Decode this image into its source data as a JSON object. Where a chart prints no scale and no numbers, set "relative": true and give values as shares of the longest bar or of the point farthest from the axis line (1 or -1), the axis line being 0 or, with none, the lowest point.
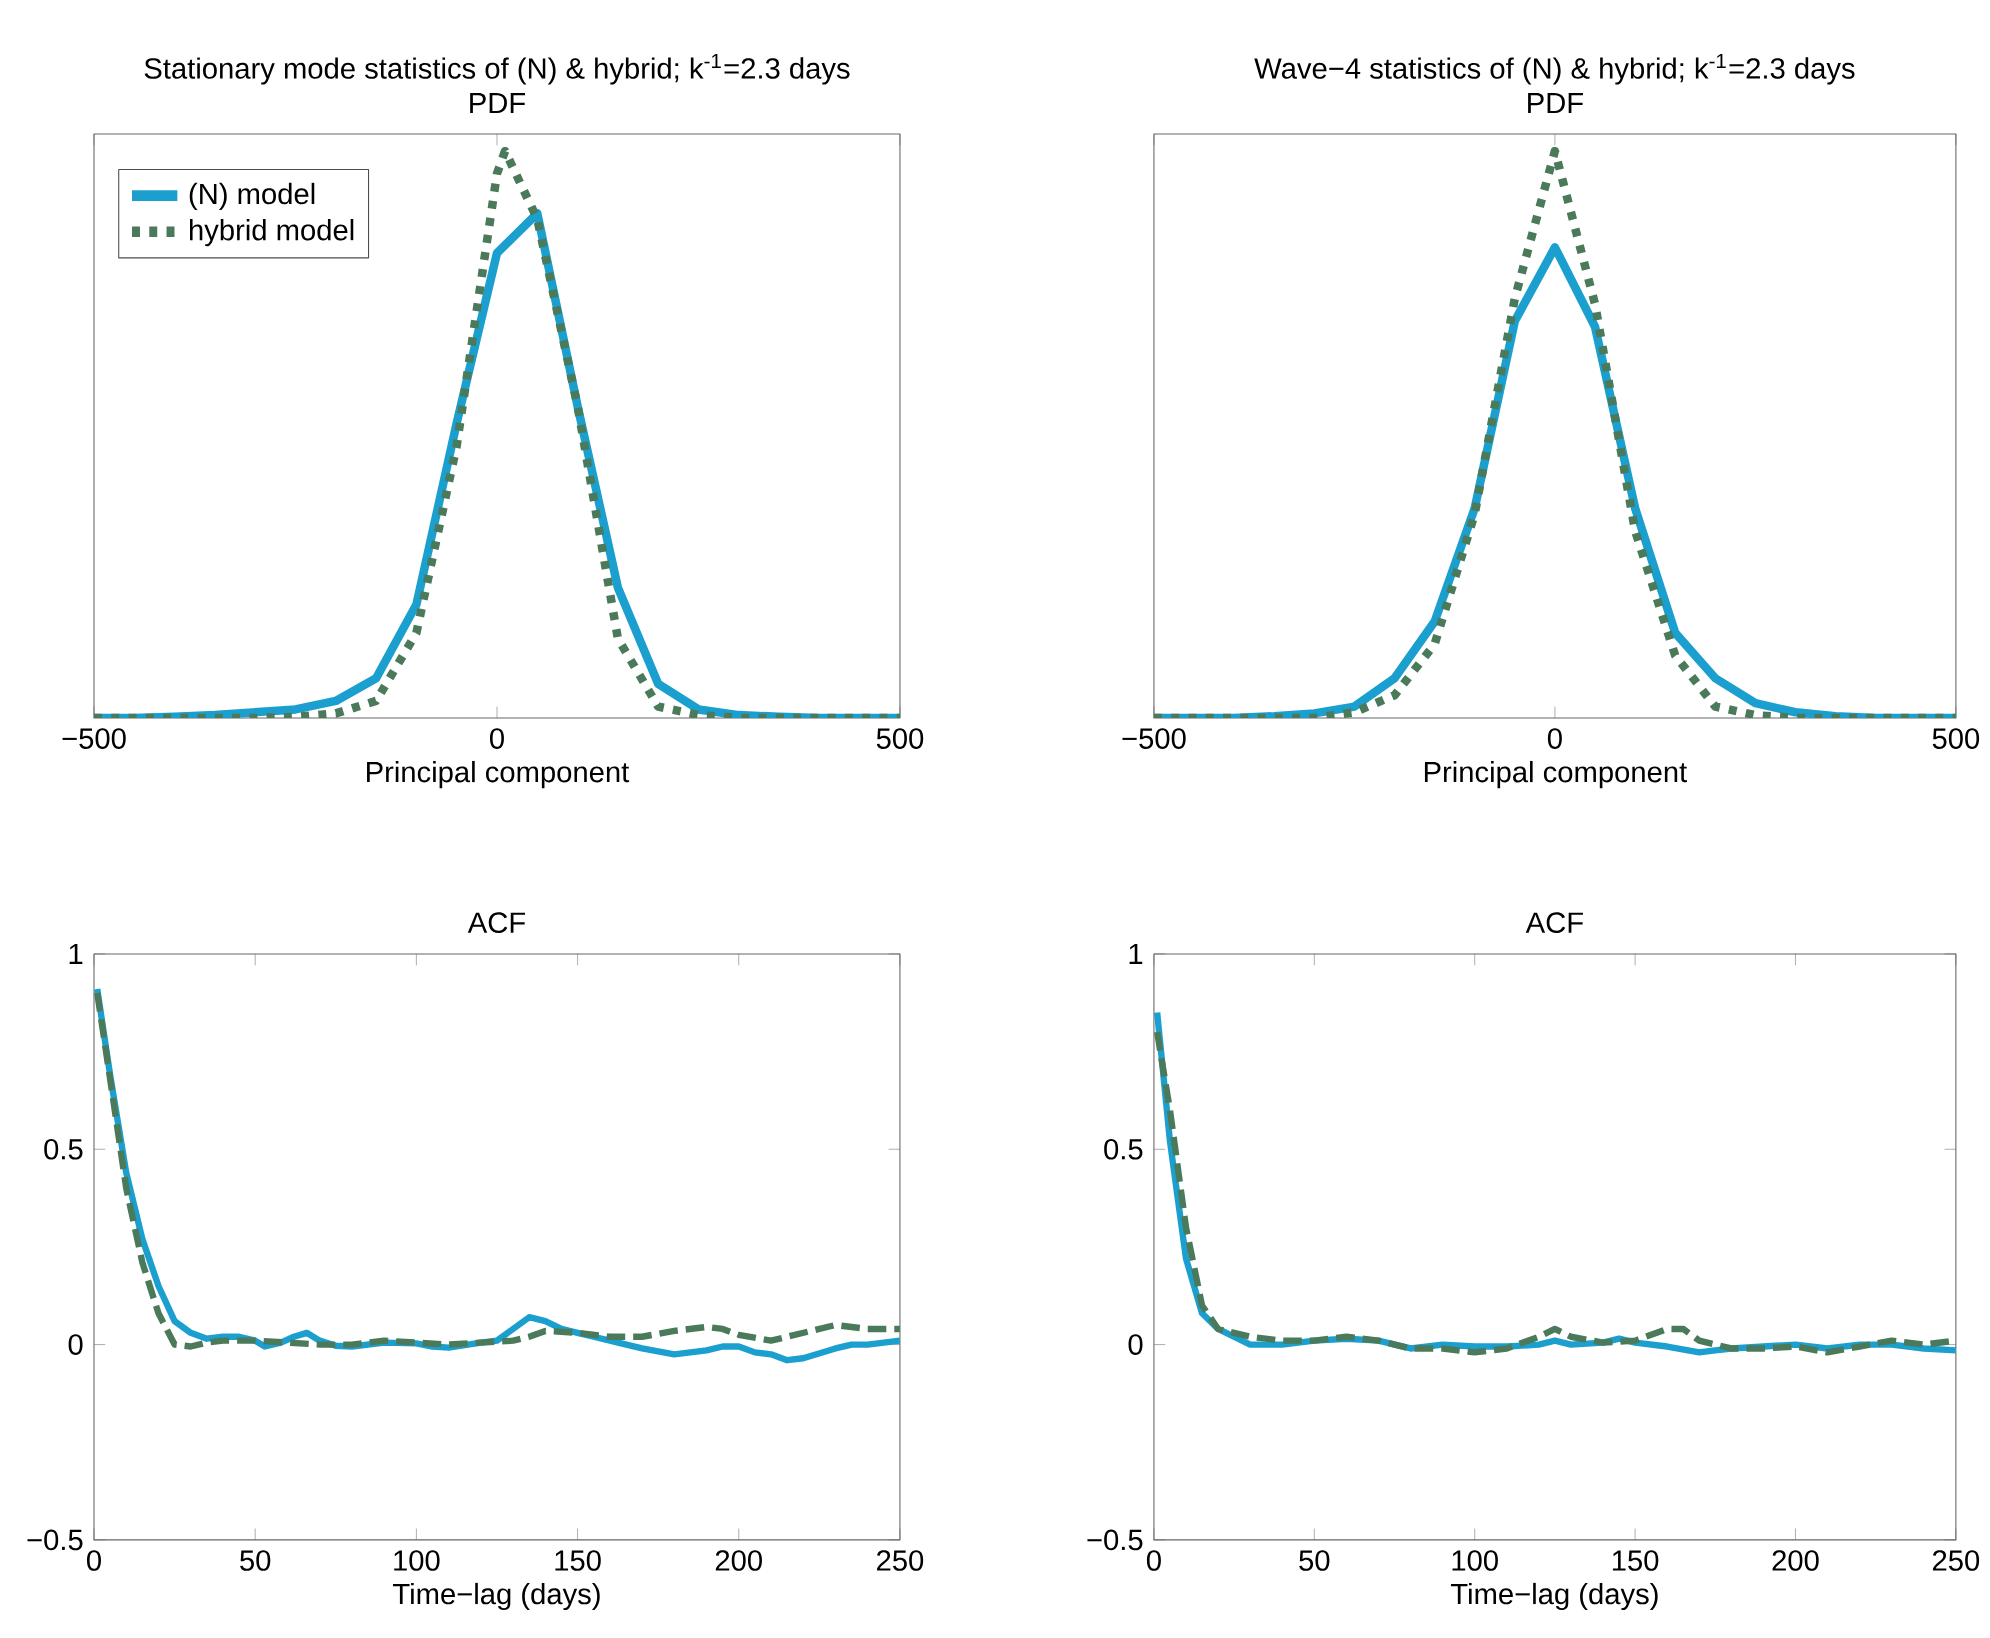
{
  "chart_data": [
    {
      "type": "line",
      "title": "Stationary mode statistics of (N) & hybrid; k$^{-1}$=2.3 days",
      "subtitle": "PDF",
      "xlabel": "Principal component",
      "relative": true,
      "xlim": [
        -500,
        500
      ],
      "xticks": [
        {
          "value": -500,
          "label": "−500"
        },
        0,
        500
      ],
      "legend": "top left",
      "grid": false,
      "series": [
        {
          "name": "(N) model",
          "color": "#1b9fcf",
          "line_style": "solid",
          "x": [
            -500,
            -450,
            -400,
            -350,
            -300,
            -250,
            -200,
            -150,
            -100,
            -50,
            0,
            50,
            100,
            150,
            200,
            250,
            300,
            350,
            400,
            450,
            500
          ],
          "values": [
            0,
            0,
            0.002,
            0.005,
            0.01,
            0.015,
            0.03,
            0.07,
            0.2,
            0.52,
            0.82,
            0.89,
            0.55,
            0.23,
            0.06,
            0.015,
            0.005,
            0.002,
            0,
            0,
            0
          ]
        },
        {
          "name": "hybrid model",
          "color": "#4a7a5a",
          "line_style": "dotted",
          "x": [
            -500,
            -450,
            -400,
            -350,
            -300,
            -250,
            -200,
            -150,
            -100,
            -50,
            0,
            10,
            50,
            100,
            150,
            200,
            250,
            300,
            350,
            400,
            450,
            500
          ],
          "values": [
            0,
            0,
            0,
            0,
            0,
            0.002,
            0.008,
            0.03,
            0.15,
            0.48,
            0.96,
            1,
            0.88,
            0.55,
            0.14,
            0.02,
            0.005,
            0,
            0,
            0,
            0,
            0
          ]
        }
      ]
    },
    {
      "type": "line",
      "title": "Wave−4 statistics of (N) & hybrid; k$^{-1}$=2.3 days",
      "subtitle": "PDF",
      "xlabel": "Principal component",
      "relative": true,
      "xlim": [
        -500,
        500
      ],
      "xticks": [
        {
          "value": -500,
          "label": "−500"
        },
        0,
        500
      ],
      "grid": false,
      "series": [
        {
          "color": "#1b9fcf",
          "line_style": "solid",
          "x": [
            -500,
            -450,
            -400,
            -350,
            -300,
            -250,
            -200,
            -150,
            -100,
            -50,
            0,
            50,
            100,
            150,
            200,
            250,
            300,
            350,
            400,
            450,
            500
          ],
          "values": [
            0,
            0,
            0,
            0.003,
            0.008,
            0.02,
            0.07,
            0.17,
            0.37,
            0.7,
            0.83,
            0.69,
            0.37,
            0.15,
            0.07,
            0.026,
            0.01,
            0.003,
            0,
            0,
            0
          ]
        },
        {
          "color": "#4a7a5a",
          "line_style": "dotted",
          "x": [
            -500,
            -450,
            -400,
            -350,
            -300,
            -250,
            -200,
            -150,
            -100,
            -50,
            0,
            50,
            100,
            150,
            200,
            250,
            300,
            350,
            400,
            450,
            500
          ],
          "values": [
            0,
            0,
            0,
            0,
            0,
            0.01,
            0.04,
            0.13,
            0.36,
            0.74,
            1,
            0.73,
            0.33,
            0.11,
            0.02,
            0.005,
            0,
            0,
            0,
            0,
            0
          ]
        }
      ]
    },
    {
      "type": "line",
      "title": "ACF",
      "xlabel": "Time−lag (days)",
      "xlim": [
        0,
        250
      ],
      "ylim": [
        -0.5,
        1
      ],
      "xticks": [
        0,
        50,
        100,
        150,
        200,
        250
      ],
      "yticks": [
        {
          "value": -0.5,
          "label": "−0.5"
        },
        0,
        0.5,
        1
      ],
      "grid": false,
      "series": [
        {
          "color": "#1b9fcf",
          "line_style": "solid",
          "x": [
            1,
            5,
            10,
            15,
            20,
            25,
            30,
            35,
            40,
            45,
            50,
            53,
            58,
            62,
            66,
            70,
            75,
            80,
            90,
            100,
            105,
            110,
            120,
            125,
            130,
            135,
            140,
            145,
            150,
            155,
            160,
            170,
            180,
            190,
            195,
            200,
            205,
            210,
            215,
            220,
            230,
            235,
            240,
            250
          ],
          "values": [
            0.91,
            0.69,
            0.44,
            0.27,
            0.15,
            0.06,
            0.03,
            0.015,
            0.02,
            0.02,
            0.01,
            -0.005,
            0.005,
            0.02,
            0.03,
            0.01,
            -0.003,
            -0.005,
            0.005,
            0.003,
            -0.005,
            -0.008,
            0.005,
            0.01,
            0.04,
            0.07,
            0.06,
            0.04,
            0.03,
            0.02,
            0.01,
            -0.01,
            -0.025,
            -0.015,
            -0.005,
            -0.005,
            -0.02,
            -0.025,
            -0.04,
            -0.035,
            -0.01,
            0,
            0,
            0.01
          ]
        },
        {
          "color": "#4a7a5a",
          "line_style": "dashed",
          "x": [
            1,
            5,
            10,
            15,
            20,
            25,
            30,
            35,
            40,
            50,
            60,
            70,
            80,
            90,
            100,
            110,
            120,
            130,
            135,
            140,
            150,
            160,
            170,
            180,
            190,
            195,
            200,
            210,
            220,
            230,
            240,
            250
          ],
          "values": [
            0.9,
            0.68,
            0.4,
            0.21,
            0.08,
            0,
            -0.005,
            0.005,
            0.01,
            0.01,
            0.005,
            0,
            0,
            0.01,
            0.005,
            0,
            0.005,
            0.01,
            0.02,
            0.035,
            0.03,
            0.02,
            0.02,
            0.035,
            0.045,
            0.04,
            0.025,
            0.01,
            0.03,
            0.05,
            0.04,
            0.04
          ]
        }
      ]
    },
    {
      "type": "line",
      "title": "ACF",
      "xlabel": "Time−lag (days)",
      "xlim": [
        0,
        250
      ],
      "ylim": [
        -0.5,
        1
      ],
      "xticks": [
        0,
        50,
        100,
        150,
        200,
        250
      ],
      "yticks": [
        {
          "value": -0.5,
          "label": "−0.5"
        },
        0,
        0.5,
        1
      ],
      "grid": false,
      "series": [
        {
          "color": "#1b9fcf",
          "line_style": "solid",
          "x": [
            1,
            5,
            10,
            15,
            20,
            25,
            30,
            40,
            50,
            60,
            70,
            80,
            90,
            100,
            110,
            120,
            125,
            130,
            140,
            145,
            150,
            160,
            170,
            175,
            180,
            190,
            200,
            210,
            220,
            230,
            240,
            250
          ],
          "values": [
            0.85,
            0.52,
            0.22,
            0.08,
            0.04,
            0.02,
            0,
            0,
            0.01,
            0.015,
            0.01,
            -0.01,
            0,
            -0.005,
            -0.005,
            0,
            0.01,
            0,
            0.005,
            0.015,
            0.005,
            -0.005,
            -0.02,
            -0.015,
            -0.01,
            -0.005,
            0,
            -0.01,
            0,
            0,
            -0.01,
            -0.015
          ]
        },
        {
          "color": "#4a7a5a",
          "line_style": "dashed",
          "x": [
            1,
            5,
            10,
            15,
            20,
            25,
            30,
            40,
            50,
            60,
            70,
            80,
            90,
            100,
            110,
            120,
            125,
            130,
            140,
            150,
            160,
            165,
            170,
            180,
            190,
            200,
            210,
            220,
            230,
            240,
            250
          ],
          "values": [
            0.8,
            0.6,
            0.3,
            0.1,
            0.04,
            0.03,
            0.02,
            0.01,
            0.01,
            0.02,
            0.01,
            -0.01,
            -0.01,
            -0.02,
            -0.01,
            0.02,
            0.04,
            0.02,
            0.005,
            0.01,
            0.04,
            0.04,
            0.01,
            -0.01,
            -0.01,
            -0.005,
            -0.02,
            -0.005,
            0.01,
            0,
            0.01
          ]
        }
      ]
    }
  ]
}
